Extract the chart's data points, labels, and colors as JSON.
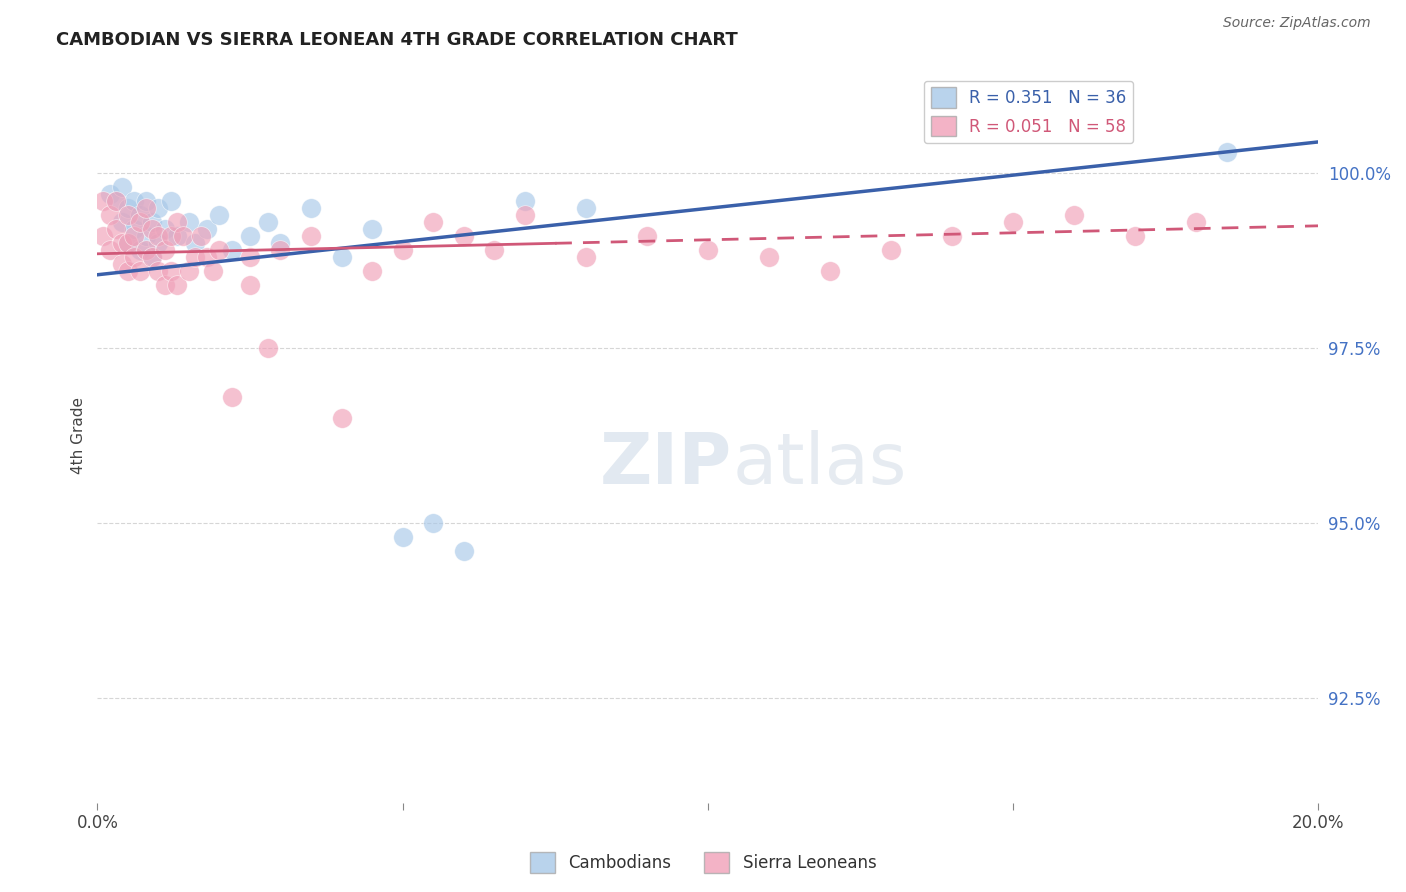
{
  "title": "CAMBODIAN VS SIERRA LEONEAN 4TH GRADE CORRELATION CHART",
  "source": "Source: ZipAtlas.com",
  "ylabel": "4th Grade",
  "yticks": [
    92.5,
    95.0,
    97.5,
    100.0
  ],
  "xlim": [
    0.0,
    20.0
  ],
  "ylim": [
    91.0,
    101.5
  ],
  "legend_blue": "R = 0.351   N = 36",
  "legend_pink": "R = 0.051   N = 58",
  "cambodian_color": "#a8c8e8",
  "sierra_color": "#f0a0b8",
  "blue_line_color": "#3a60aa",
  "pink_line_color": "#d05878",
  "grid_color": "#cccccc",
  "blue_trend_x0": 0.0,
  "blue_trend_y0": 98.55,
  "blue_trend_x1": 20.0,
  "blue_trend_y1": 100.45,
  "pink_trend_x0": 0.0,
  "pink_trend_y0": 98.85,
  "pink_trend_x1": 20.0,
  "pink_trend_y1": 99.25,
  "pink_solid_end": 7.5,
  "cambodian_points": [
    [
      0.2,
      99.7
    ],
    [
      0.3,
      99.6
    ],
    [
      0.4,
      99.8
    ],
    [
      0.4,
      99.3
    ],
    [
      0.5,
      99.5
    ],
    [
      0.5,
      99.0
    ],
    [
      0.6,
      99.6
    ],
    [
      0.6,
      99.2
    ],
    [
      0.7,
      99.4
    ],
    [
      0.7,
      98.9
    ],
    [
      0.8,
      99.6
    ],
    [
      0.8,
      99.1
    ],
    [
      0.9,
      99.3
    ],
    [
      0.9,
      98.8
    ],
    [
      1.0,
      99.5
    ],
    [
      1.0,
      99.0
    ],
    [
      1.1,
      99.2
    ],
    [
      1.2,
      99.6
    ],
    [
      1.3,
      99.1
    ],
    [
      1.5,
      99.3
    ],
    [
      1.6,
      99.0
    ],
    [
      1.8,
      99.2
    ],
    [
      2.0,
      99.4
    ],
    [
      2.2,
      98.9
    ],
    [
      2.5,
      99.1
    ],
    [
      2.8,
      99.3
    ],
    [
      3.0,
      99.0
    ],
    [
      3.5,
      99.5
    ],
    [
      4.0,
      98.8
    ],
    [
      4.5,
      99.2
    ],
    [
      5.0,
      94.8
    ],
    [
      5.5,
      95.0
    ],
    [
      6.0,
      94.6
    ],
    [
      7.0,
      99.6
    ],
    [
      8.0,
      99.5
    ],
    [
      18.5,
      100.3
    ]
  ],
  "sierra_points": [
    [
      0.1,
      99.6
    ],
    [
      0.1,
      99.1
    ],
    [
      0.2,
      99.4
    ],
    [
      0.2,
      98.9
    ],
    [
      0.3,
      99.6
    ],
    [
      0.3,
      99.2
    ],
    [
      0.4,
      99.0
    ],
    [
      0.4,
      98.7
    ],
    [
      0.5,
      99.4
    ],
    [
      0.5,
      99.0
    ],
    [
      0.5,
      98.6
    ],
    [
      0.6,
      99.1
    ],
    [
      0.6,
      98.8
    ],
    [
      0.7,
      99.3
    ],
    [
      0.7,
      98.6
    ],
    [
      0.8,
      99.5
    ],
    [
      0.8,
      98.9
    ],
    [
      0.9,
      99.2
    ],
    [
      0.9,
      98.8
    ],
    [
      1.0,
      99.1
    ],
    [
      1.0,
      98.6
    ],
    [
      1.1,
      98.9
    ],
    [
      1.1,
      98.4
    ],
    [
      1.2,
      99.1
    ],
    [
      1.2,
      98.6
    ],
    [
      1.3,
      99.3
    ],
    [
      1.3,
      98.4
    ],
    [
      1.4,
      99.1
    ],
    [
      1.5,
      98.6
    ],
    [
      1.6,
      98.8
    ],
    [
      1.7,
      99.1
    ],
    [
      1.8,
      98.8
    ],
    [
      1.9,
      98.6
    ],
    [
      2.0,
      98.9
    ],
    [
      2.2,
      96.8
    ],
    [
      2.5,
      98.8
    ],
    [
      2.5,
      98.4
    ],
    [
      2.8,
      97.5
    ],
    [
      3.0,
      98.9
    ],
    [
      3.5,
      99.1
    ],
    [
      4.0,
      96.5
    ],
    [
      4.5,
      98.6
    ],
    [
      5.0,
      98.9
    ],
    [
      5.5,
      99.3
    ],
    [
      6.0,
      99.1
    ],
    [
      6.5,
      98.9
    ],
    [
      7.0,
      99.4
    ],
    [
      8.0,
      98.8
    ],
    [
      9.0,
      99.1
    ],
    [
      10.0,
      98.9
    ],
    [
      11.0,
      98.8
    ],
    [
      12.0,
      98.6
    ],
    [
      13.0,
      98.9
    ],
    [
      14.0,
      99.1
    ],
    [
      15.0,
      99.3
    ],
    [
      16.0,
      99.4
    ],
    [
      17.0,
      99.1
    ],
    [
      18.0,
      99.3
    ]
  ]
}
